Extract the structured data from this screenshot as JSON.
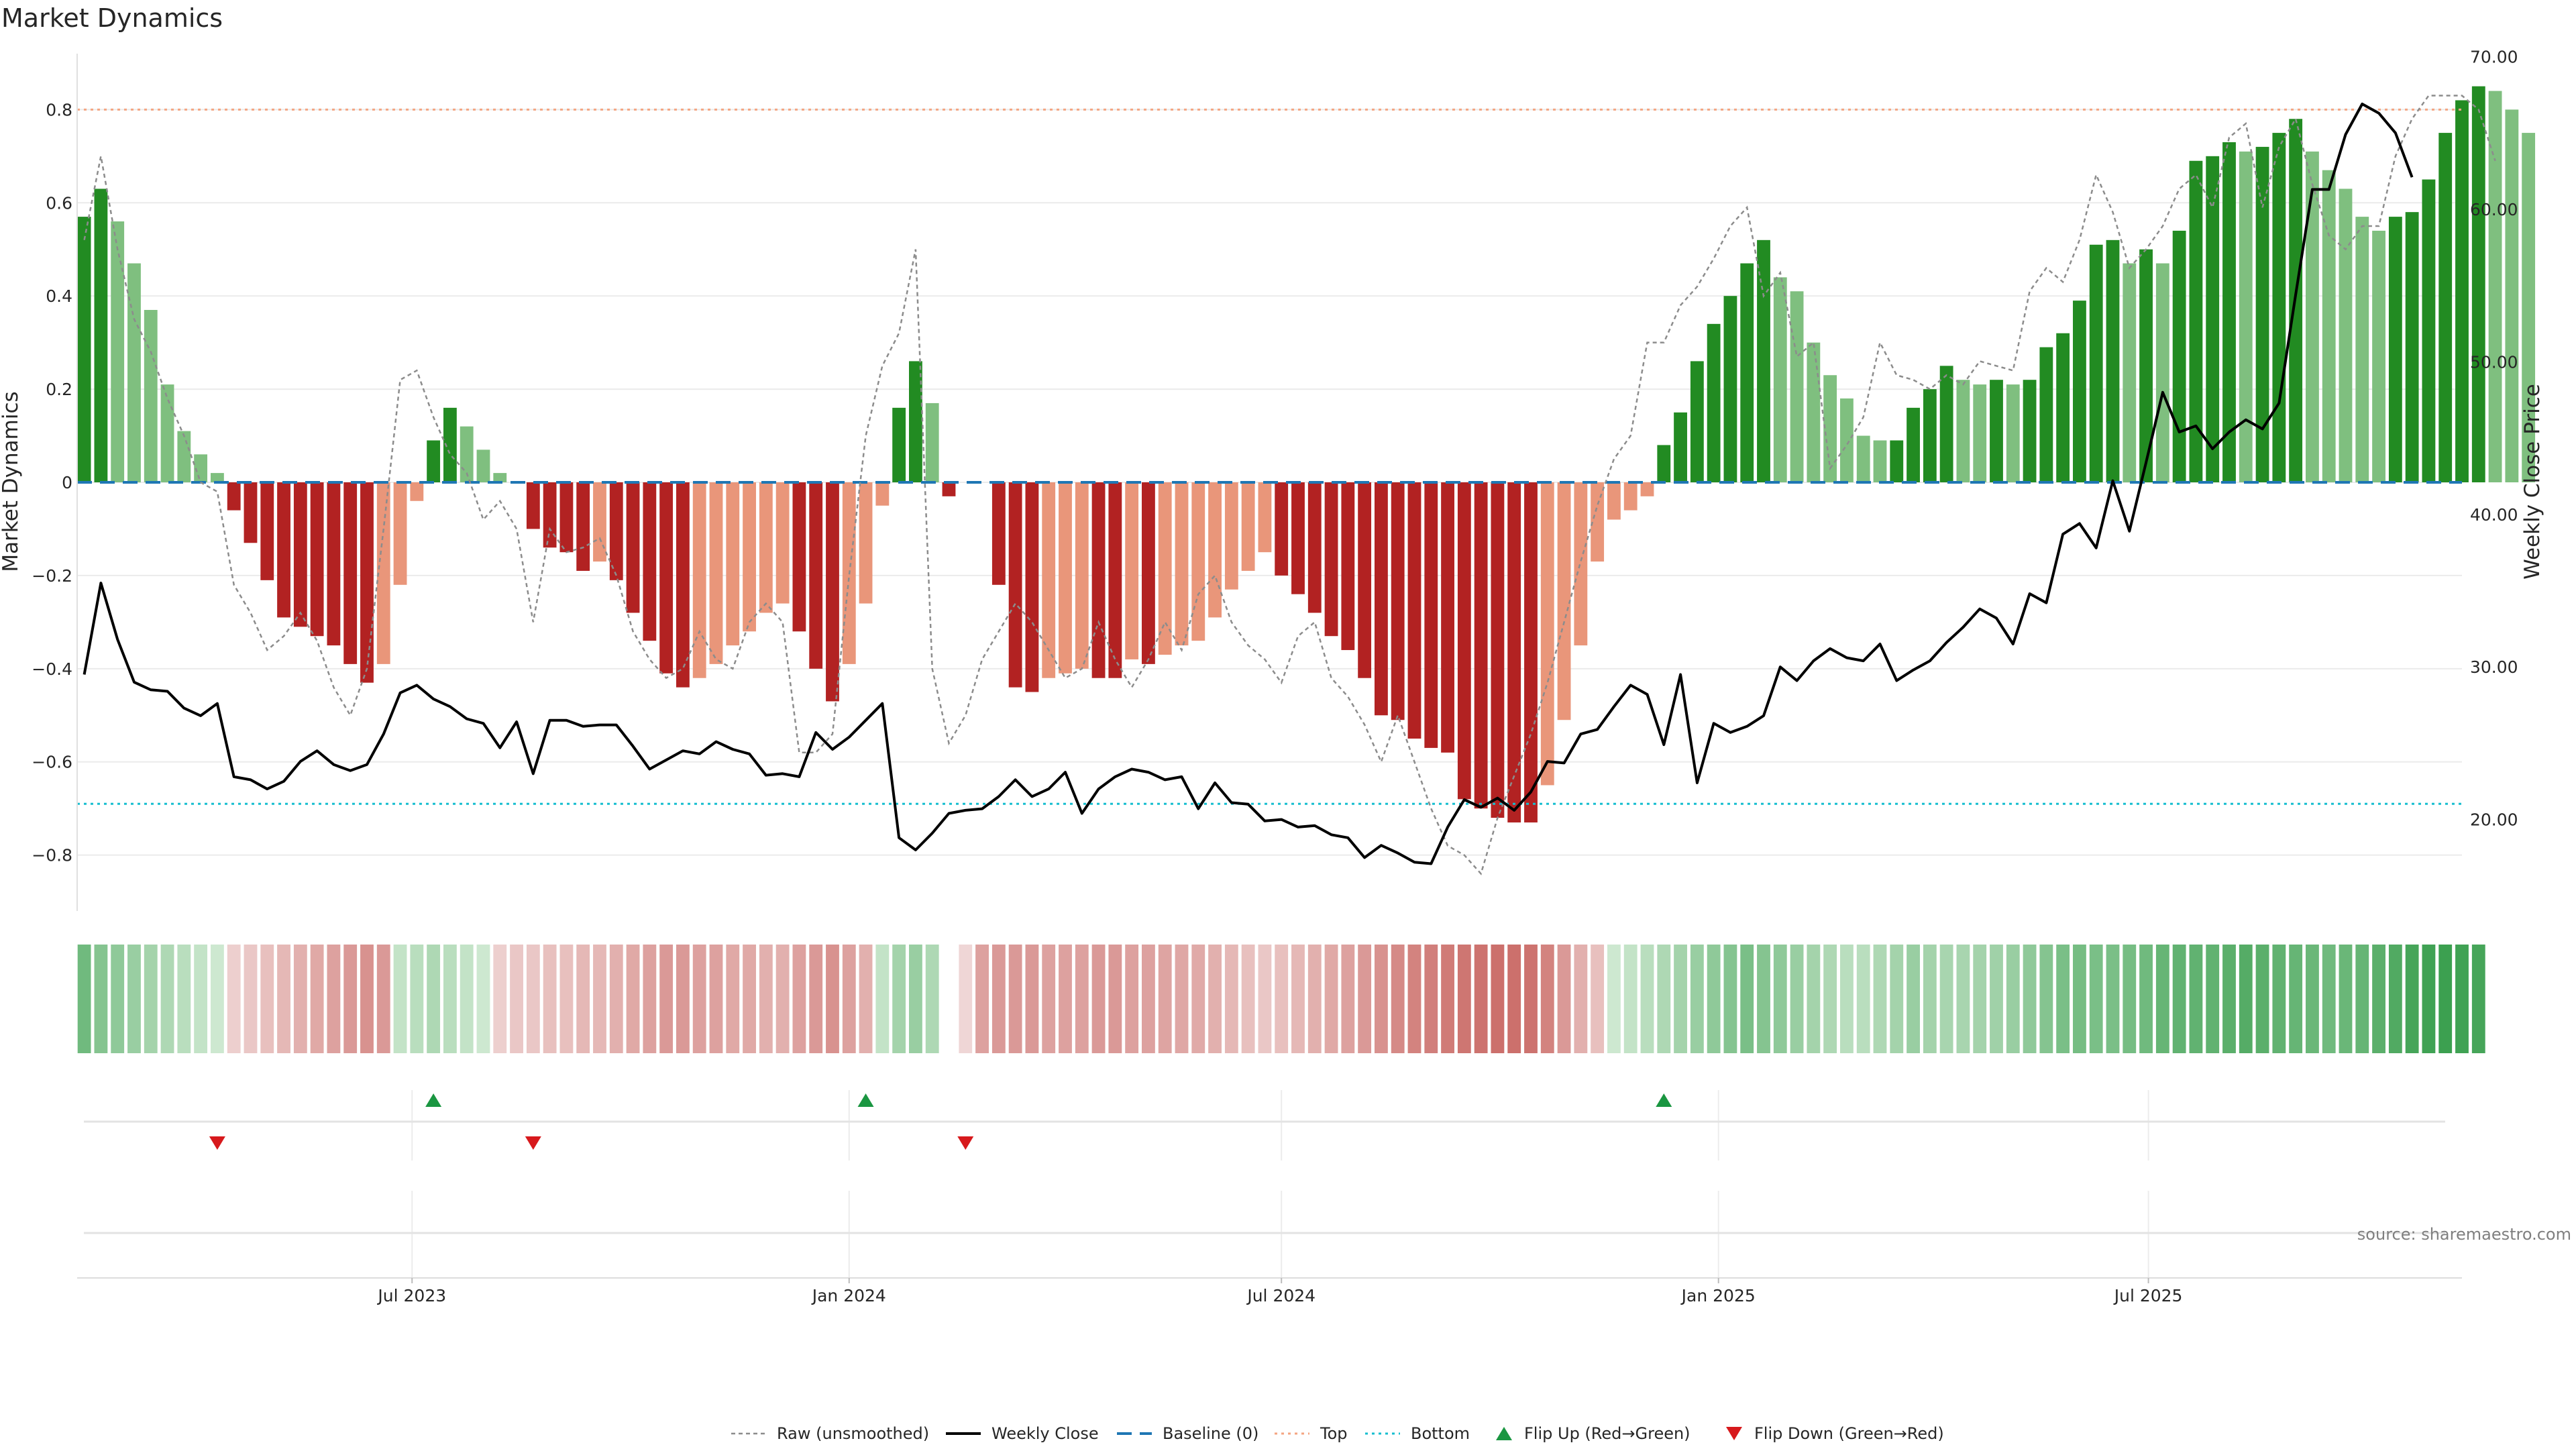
{
  "chart_data": {
    "type": "bar",
    "title": "Market Dynamics",
    "ylabel": "Market Dynamics",
    "ylabel_right": "Weekly Close Price",
    "ylim": [
      -0.92,
      0.92
    ],
    "ylim_right": [
      14.0,
      70.2
    ],
    "yticks": [
      "0.8",
      "0.6",
      "0.4",
      "0.2",
      "0",
      "−0.2",
      "−0.4",
      "−0.6",
      "−0.8"
    ],
    "yticks_right": [
      "70.00",
      "60.00",
      "50.00",
      "40.00",
      "30.00",
      "20.00"
    ],
    "xlim": [
      "2023-02-10",
      "2025-11-10"
    ],
    "x_tick_labels": [
      {
        "date": "2023-07-01",
        "label": "Jul 2023"
      },
      {
        "date": "2024-01-01",
        "label": "Jan 2024"
      },
      {
        "date": "2024-07-01",
        "label": "Jul 2024"
      },
      {
        "date": "2025-01-01",
        "label": "Jan 2025"
      },
      {
        "date": "2025-07-01",
        "label": "Jul 2025"
      }
    ],
    "first_week": "2023-02-13",
    "levels": {
      "top": 0.8,
      "bottom": -0.69,
      "baseline": 0
    },
    "colors": {
      "strong_up": "#228b22",
      "weak_up": "#7fbf7f",
      "strong_down": "#b22222",
      "weak_down": "#e9967a",
      "close": "#000000",
      "raw": "#8c8c8c",
      "baseline": "#1f77b4",
      "top": "#f4a582",
      "bottom": "#17becf",
      "flip_up": "#1a9641",
      "flip_down": "#d7191c"
    },
    "dynamics": [
      0.57,
      0.63,
      0.56,
      0.47,
      0.37,
      0.21,
      0.11,
      0.06,
      0.02,
      -0.06,
      -0.13,
      -0.21,
      -0.29,
      -0.31,
      -0.33,
      -0.35,
      -0.39,
      -0.43,
      -0.39,
      -0.22,
      -0.04,
      0.09,
      0.16,
      0.12,
      0.07,
      0.02,
      0,
      -0.1,
      -0.14,
      -0.15,
      -0.19,
      -0.17,
      -0.21,
      -0.28,
      -0.34,
      -0.41,
      -0.44,
      -0.42,
      -0.39,
      -0.35,
      -0.32,
      -0.28,
      -0.26,
      -0.32,
      -0.4,
      -0.47,
      -0.39,
      -0.26,
      -0.05,
      0.16,
      0.26,
      0.17,
      -0.03,
      0,
      0,
      -0.22,
      -0.44,
      -0.45,
      -0.42,
      -0.41,
      -0.4,
      -0.42,
      -0.42,
      -0.38,
      -0.39,
      -0.37,
      -0.35,
      -0.34,
      -0.29,
      -0.23,
      -0.19,
      -0.15,
      -0.2,
      -0.24,
      -0.28,
      -0.33,
      -0.36,
      -0.42,
      -0.5,
      -0.51,
      -0.55,
      -0.57,
      -0.58,
      -0.68,
      -0.7,
      -0.72,
      -0.73,
      -0.73,
      -0.65,
      -0.51,
      -0.35,
      -0.17,
      -0.08,
      -0.06,
      -0.03,
      0.08,
      0.15,
      0.26,
      0.34,
      0.4,
      0.47,
      0.52,
      0.44,
      0.41,
      0.3,
      0.23,
      0.18,
      0.1,
      0.09,
      0.09,
      0.16,
      0.2,
      0.25,
      0.22,
      0.21,
      0.22,
      0.21,
      0.22,
      0.29,
      0.32,
      0.39,
      0.51,
      0.52,
      0.47,
      0.5,
      0.47,
      0.54,
      0.69,
      0.7,
      0.73,
      0.71,
      0.72,
      0.75,
      0.78,
      0.71,
      0.67,
      0.63,
      0.57,
      0.54,
      0.57,
      0.58,
      0.65,
      0.75,
      0.82,
      0.85,
      0.84,
      0.8,
      0.75
    ],
    "raw": [
      0.52,
      0.7,
      0.5,
      0.35,
      0.28,
      0.18,
      0.1,
      0.0,
      -0.02,
      -0.22,
      -0.28,
      -0.36,
      -0.33,
      -0.28,
      -0.34,
      -0.44,
      -0.5,
      -0.4,
      -0.1,
      0.22,
      0.24,
      0.14,
      0.06,
      0.02,
      -0.08,
      -0.04,
      -0.1,
      -0.3,
      -0.1,
      -0.15,
      -0.14,
      -0.12,
      -0.2,
      -0.32,
      -0.38,
      -0.42,
      -0.4,
      -0.32,
      -0.38,
      -0.4,
      -0.3,
      -0.26,
      -0.3,
      -0.58,
      -0.58,
      -0.54,
      -0.2,
      0.1,
      0.25,
      0.32,
      0.5,
      -0.4,
      -0.56,
      -0.5,
      -0.38,
      -0.32,
      -0.26,
      -0.3,
      -0.36,
      -0.42,
      -0.4,
      -0.3,
      -0.38,
      -0.44,
      -0.38,
      -0.3,
      -0.36,
      -0.24,
      -0.2,
      -0.3,
      -0.35,
      -0.38,
      -0.43,
      -0.33,
      -0.3,
      -0.42,
      -0.46,
      -0.52,
      -0.6,
      -0.5,
      -0.6,
      -0.7,
      -0.78,
      -0.8,
      -0.84,
      -0.72,
      -0.63,
      -0.54,
      -0.43,
      -0.3,
      -0.17,
      -0.05,
      0.05,
      0.1,
      0.3,
      0.3,
      0.38,
      0.42,
      0.48,
      0.55,
      0.59,
      0.4,
      0.45,
      0.27,
      0.3,
      0.03,
      0.08,
      0.14,
      0.3,
      0.23,
      0.22,
      0.2,
      0.23,
      0.21,
      0.26,
      0.25,
      0.24,
      0.41,
      0.46,
      0.43,
      0.52,
      0.66,
      0.58,
      0.46,
      0.5,
      0.55,
      0.63,
      0.66,
      0.59,
      0.74,
      0.77,
      0.59,
      0.72,
      0.78,
      0.64,
      0.53,
      0.5,
      0.55,
      0.55,
      0.7,
      0.78,
      0.83,
      0.83,
      0.83,
      0.8,
      0.69
    ],
    "close": [
      29.5,
      35.5,
      31.8,
      29.0,
      28.5,
      28.4,
      27.3,
      26.8,
      27.6,
      22.8,
      22.6,
      22.0,
      22.5,
      23.8,
      24.5,
      23.6,
      23.2,
      23.6,
      25.6,
      28.3,
      28.8,
      27.9,
      27.4,
      26.6,
      26.3,
      24.7,
      26.4,
      23.0,
      26.5,
      26.5,
      26.1,
      26.2,
      26.2,
      24.8,
      23.3,
      23.9,
      24.5,
      24.3,
      25.1,
      24.6,
      24.3,
      22.9,
      23.0,
      22.8,
      25.7,
      24.6,
      25.4,
      26.5,
      27.6,
      18.8,
      18.0,
      19.1,
      20.4,
      20.6,
      20.7,
      21.5,
      22.6,
      21.5,
      22.0,
      23.1,
      20.4,
      22.0,
      22.8,
      23.3,
      23.1,
      22.6,
      22.8,
      20.7,
      22.4,
      21.1,
      21.0,
      19.9,
      20.0,
      19.5,
      19.6,
      19.0,
      18.8,
      17.5,
      18.3,
      17.8,
      17.2,
      17.1,
      19.5,
      21.3,
      20.8,
      21.4,
      20.6,
      21.8,
      23.8,
      23.7,
      25.6,
      25.9,
      27.4,
      28.8,
      28.2,
      24.9,
      29.5,
      22.4,
      26.3,
      25.7,
      26.1,
      26.8,
      30.0,
      29.1,
      30.4,
      31.2,
      30.6,
      30.4,
      31.5,
      29.1,
      29.8,
      30.4,
      31.6,
      32.6,
      33.8,
      33.2,
      31.5,
      34.8,
      34.2,
      38.7,
      39.4,
      37.8,
      42.2,
      38.9,
      43.4,
      48.0,
      45.4,
      45.8,
      44.3,
      45.4,
      46.2,
      45.6,
      47.3,
      54.4,
      61.3,
      61.3,
      64.9,
      66.9,
      66.3,
      65.0,
      62.1
    ],
    "heat_strip": [
      0.55,
      0.45,
      0.4,
      0.35,
      0.3,
      0.25,
      0.2,
      0.15,
      0.1,
      -0.1,
      -0.15,
      -0.2,
      -0.25,
      -0.3,
      -0.35,
      -0.4,
      -0.45,
      -0.5,
      -0.45,
      0.15,
      0.2,
      0.25,
      0.2,
      0.15,
      0.1,
      -0.1,
      -0.15,
      -0.15,
      -0.2,
      -0.2,
      -0.25,
      -0.25,
      -0.3,
      -0.35,
      -0.4,
      -0.45,
      -0.45,
      -0.4,
      -0.4,
      -0.35,
      -0.35,
      -0.3,
      -0.3,
      -0.4,
      -0.45,
      -0.5,
      -0.4,
      -0.3,
      0.15,
      0.3,
      0.35,
      0.25,
      0,
      -0.05,
      -0.4,
      -0.45,
      -0.45,
      -0.45,
      -0.4,
      -0.4,
      -0.4,
      -0.45,
      -0.45,
      -0.4,
      -0.4,
      -0.38,
      -0.36,
      -0.34,
      -0.3,
      -0.25,
      -0.2,
      -0.15,
      -0.2,
      -0.25,
      -0.3,
      -0.35,
      -0.4,
      -0.45,
      -0.5,
      -0.55,
      -0.6,
      -0.62,
      -0.65,
      -0.68,
      -0.7,
      -0.72,
      -0.72,
      -0.7,
      -0.6,
      -0.45,
      -0.3,
      -0.2,
      0.1,
      0.15,
      0.2,
      0.25,
      0.3,
      0.35,
      0.4,
      0.45,
      0.5,
      0.45,
      0.4,
      0.35,
      0.3,
      0.25,
      0.2,
      0.2,
      0.25,
      0.3,
      0.35,
      0.3,
      0.28,
      0.28,
      0.3,
      0.32,
      0.35,
      0.4,
      0.45,
      0.5,
      0.52,
      0.5,
      0.5,
      0.52,
      0.55,
      0.6,
      0.62,
      0.62,
      0.62,
      0.65,
      0.68,
      0.65,
      0.62,
      0.6,
      0.58,
      0.55,
      0.58,
      0.6,
      0.65,
      0.7,
      0.75,
      0.78,
      0.8,
      0.78,
      0.75
    ],
    "flip_up_dates": [
      "2023-07-10",
      "2024-01-08",
      "2024-12-09"
    ],
    "flip_down_dates": [
      "2023-04-10",
      "2023-08-21",
      "2024-02-19"
    ],
    "legend": [
      "Raw (unsmoothed)",
      "Weekly Close",
      "Baseline (0)",
      "Top",
      "Bottom",
      "Flip Up (Red→Green)",
      "Flip Down (Green→Red)"
    ],
    "legend_position": "bottom-center",
    "source": "source: sharemaestro.com"
  }
}
